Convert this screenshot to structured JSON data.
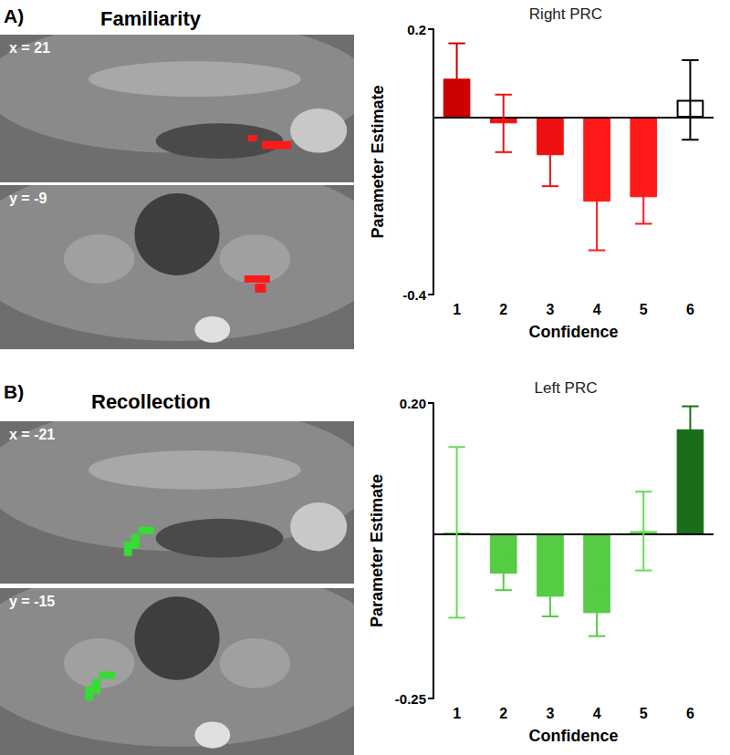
{
  "panels": [
    {
      "label": "A)",
      "heading": "Familiarity",
      "slices": [
        "x = 21",
        "y = -9"
      ]
    },
    {
      "label": "B)",
      "heading": "Recollection",
      "slices": [
        "x = -21",
        "y = -15"
      ]
    }
  ],
  "chart_data": [
    {
      "type": "bar",
      "title": "Right PRC",
      "x_label": "Confidence",
      "y_label": "Parameter Estimate",
      "categories": [
        "1",
        "2",
        "3",
        "4",
        "5",
        "6"
      ],
      "values": [
        0.088,
        -0.013,
        -0.085,
        -0.19,
        -0.18,
        0.04
      ],
      "errors": [
        0.08,
        0.065,
        0.07,
        0.11,
        0.06,
        0.09
      ],
      "colors": [
        "#cc0000",
        "#ee1111",
        "#ee1111",
        "#ff1a1a",
        "#ff1a1a",
        "#ffffff"
      ],
      "ylim": [
        -0.4,
        0.2
      ],
      "yticks": [
        -0.4,
        0.2
      ],
      "grid": false
    },
    {
      "type": "bar",
      "title": "Left PRC",
      "x_label": "Confidence",
      "y_label": "Parameter Estimate",
      "categories": [
        "1",
        "2",
        "3",
        "4",
        "5",
        "6"
      ],
      "values": [
        0.003,
        -0.06,
        -0.095,
        -0.12,
        0.005,
        0.16
      ],
      "errors": [
        0.13,
        0.025,
        0.03,
        0.035,
        0.06,
        0.035
      ],
      "colors": [
        "#66dd55",
        "#55cc44",
        "#55cc44",
        "#55cc44",
        "#66dd55",
        "#1a6e1a"
      ],
      "ylim": [
        -0.25,
        0.2
      ],
      "yticks": [
        -0.25,
        {
          "value": 0.2,
          "label": "0.20"
        }
      ],
      "grid": false
    }
  ]
}
